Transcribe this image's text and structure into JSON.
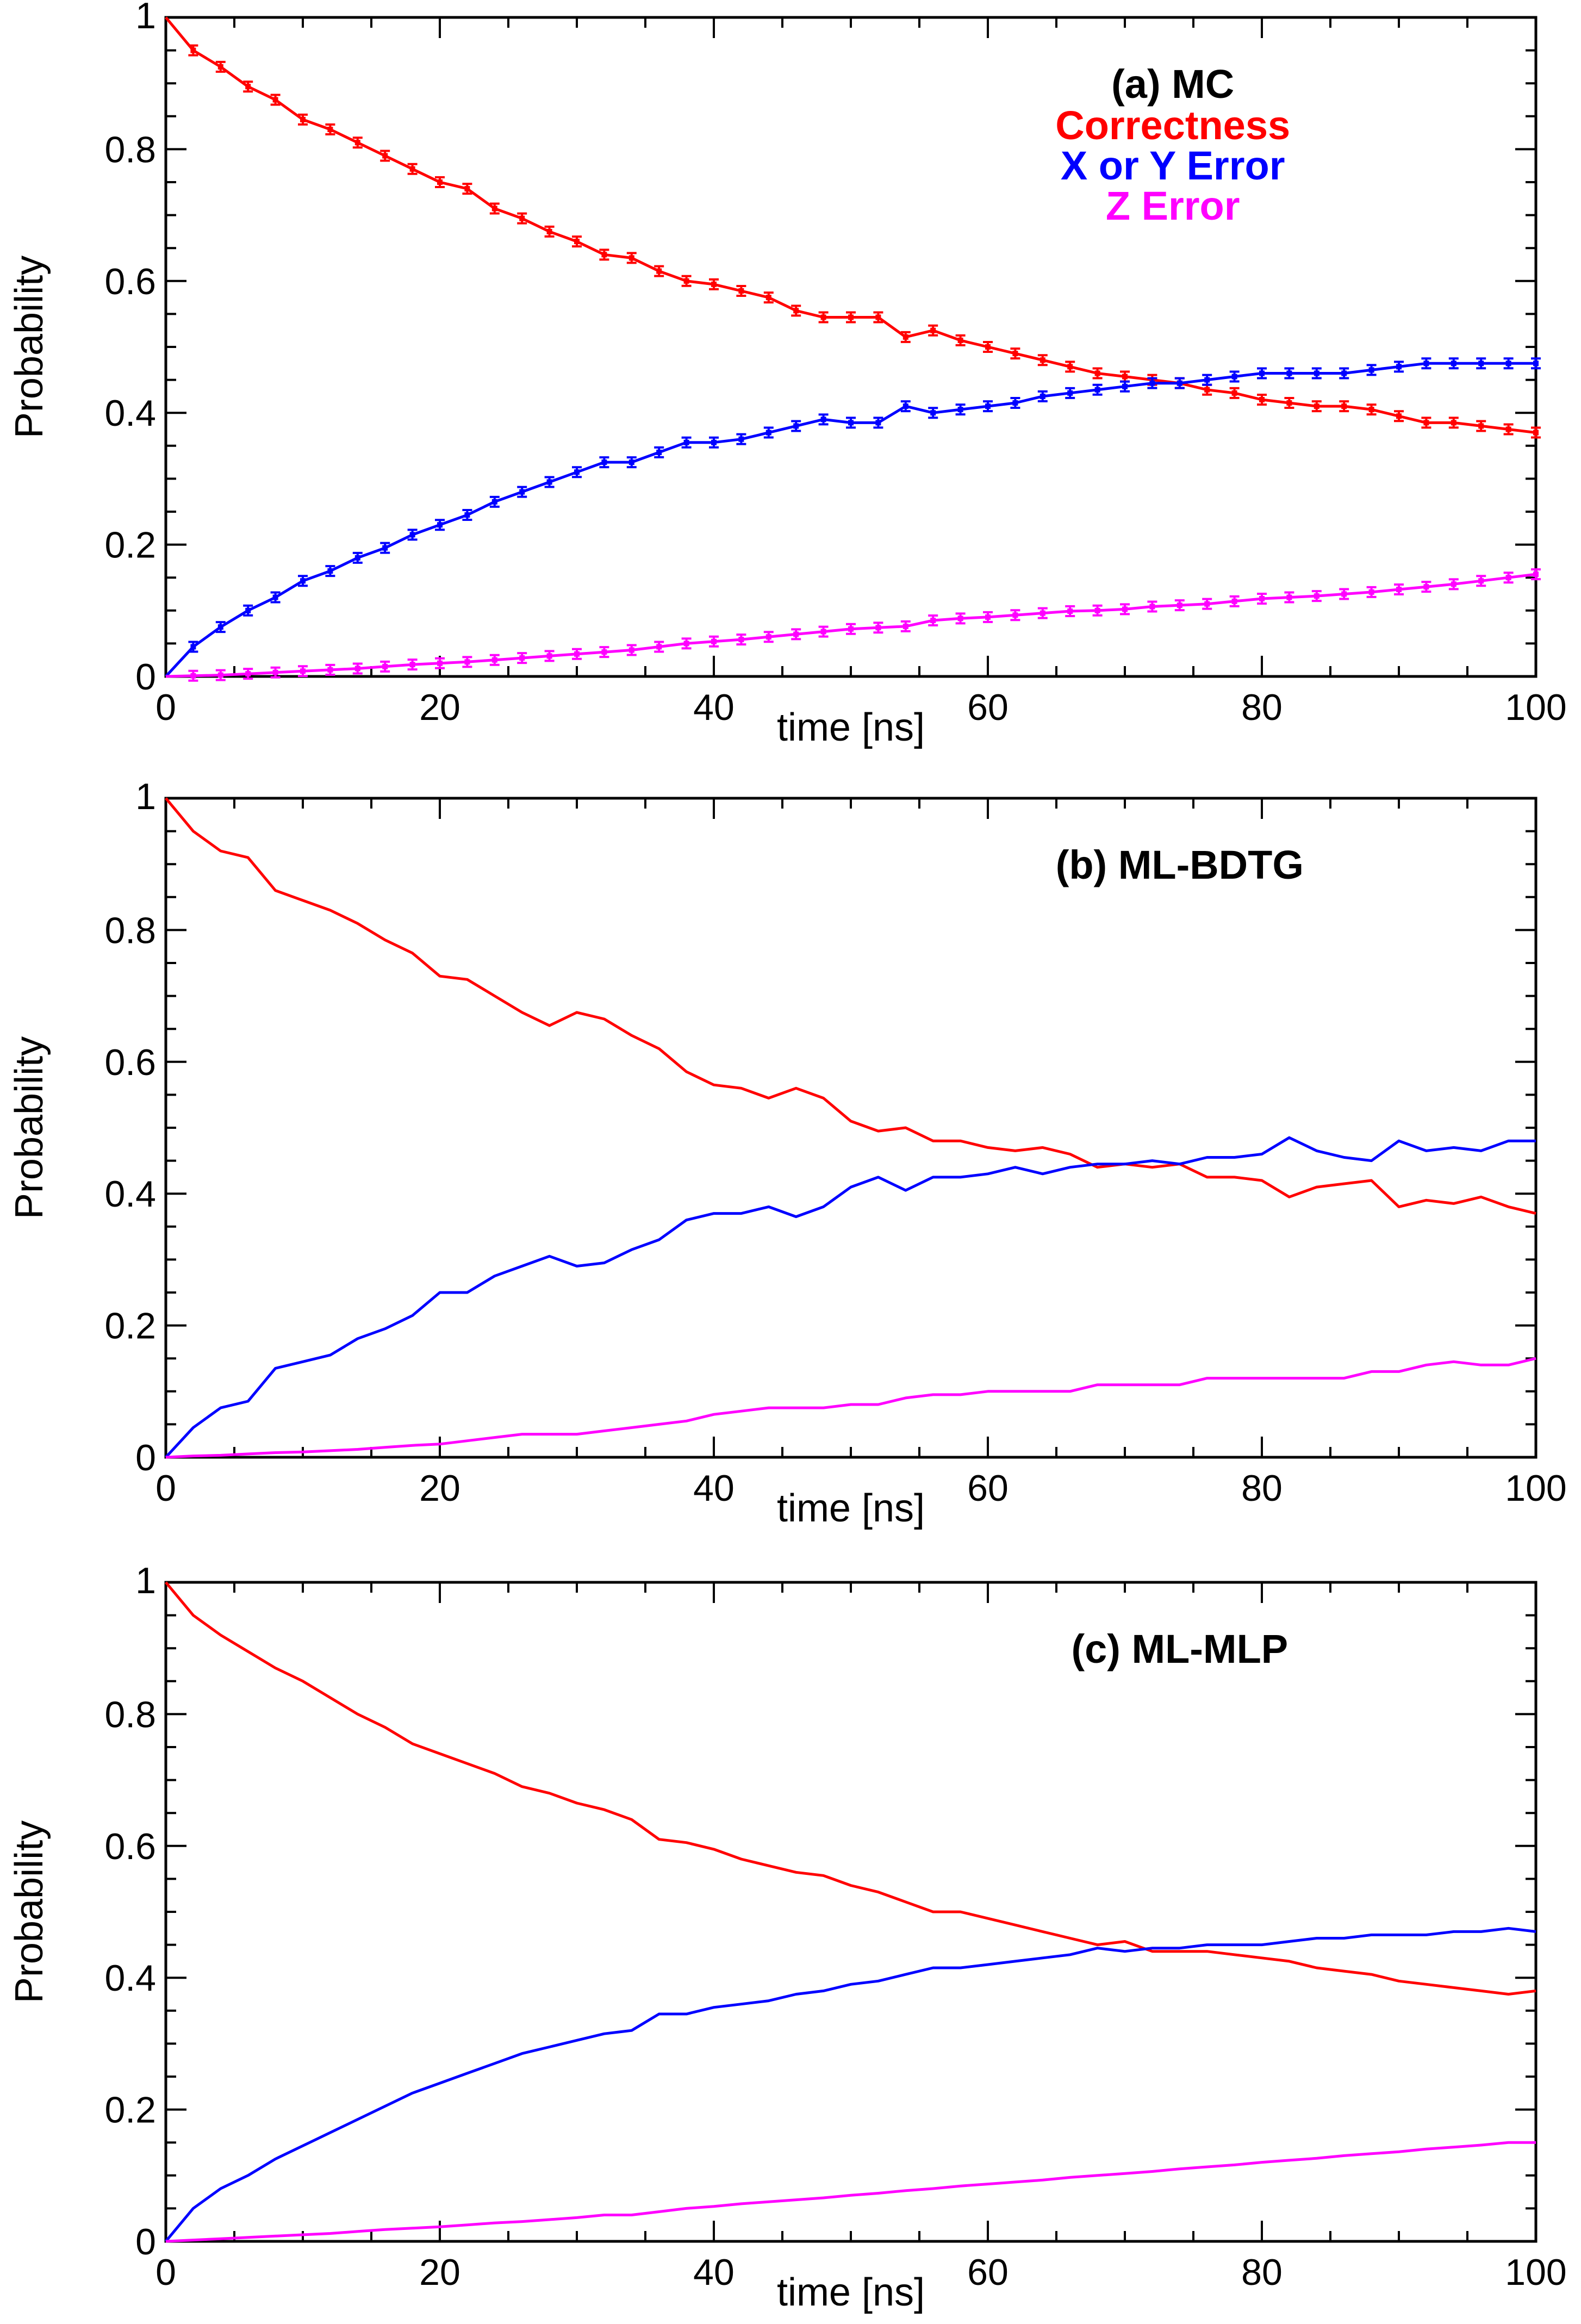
{
  "colors": {
    "correctness": "#ff0000",
    "xy_error": "#0000ff",
    "z_error": "#ff00ff",
    "axis": "#000000"
  },
  "legend": {
    "correctness": "Correctness",
    "xy_error": "X or Y Error",
    "z_error": "Z Error"
  },
  "chart_data": [
    {
      "type": "line",
      "title": "(a) MC",
      "xlabel": "time [ns]",
      "ylabel": "Probability",
      "xlim": [
        0,
        100
      ],
      "ylim": [
        0,
        1
      ],
      "xticks": [
        "0",
        "20",
        "40",
        "60",
        "80",
        "100"
      ],
      "yticks": [
        "0",
        "0.2",
        "0.4",
        "0.6",
        "0.8",
        "1"
      ],
      "error_bars": true,
      "x": [
        0,
        2,
        4,
        6,
        8,
        10,
        12,
        14,
        16,
        18,
        20,
        22,
        24,
        26,
        28,
        30,
        32,
        34,
        36,
        38,
        40,
        42,
        44,
        46,
        48,
        50,
        52,
        54,
        56,
        58,
        60,
        62,
        64,
        66,
        68,
        70,
        72,
        74,
        76,
        78,
        80,
        82,
        84,
        86,
        88,
        90,
        92,
        94,
        96,
        98,
        100
      ],
      "series": [
        {
          "name": "Correctness",
          "color_key": "correctness",
          "values": [
            1.0,
            0.95,
            0.925,
            0.895,
            0.875,
            0.845,
            0.83,
            0.81,
            0.79,
            0.77,
            0.75,
            0.74,
            0.71,
            0.695,
            0.675,
            0.66,
            0.64,
            0.635,
            0.615,
            0.6,
            0.595,
            0.585,
            0.575,
            0.555,
            0.545,
            0.545,
            0.545,
            0.515,
            0.525,
            0.51,
            0.5,
            0.49,
            0.48,
            0.47,
            0.46,
            0.455,
            0.45,
            0.445,
            0.435,
            0.43,
            0.42,
            0.415,
            0.41,
            0.41,
            0.405,
            0.395,
            0.385,
            0.385,
            0.38,
            0.375,
            0.37
          ]
        },
        {
          "name": "X or Y Error",
          "color_key": "xy_error",
          "values": [
            0.0,
            0.045,
            0.075,
            0.1,
            0.12,
            0.145,
            0.16,
            0.18,
            0.195,
            0.215,
            0.23,
            0.245,
            0.265,
            0.28,
            0.295,
            0.31,
            0.325,
            0.325,
            0.34,
            0.355,
            0.355,
            0.36,
            0.37,
            0.38,
            0.39,
            0.385,
            0.385,
            0.41,
            0.4,
            0.405,
            0.41,
            0.415,
            0.425,
            0.43,
            0.435,
            0.44,
            0.445,
            0.445,
            0.45,
            0.455,
            0.46,
            0.46,
            0.46,
            0.46,
            0.465,
            0.47,
            0.475,
            0.475,
            0.475,
            0.475,
            0.475
          ]
        },
        {
          "name": "Z Error",
          "color_key": "z_error",
          "values": [
            0.0,
            0.001,
            0.002,
            0.004,
            0.006,
            0.008,
            0.01,
            0.012,
            0.015,
            0.018,
            0.02,
            0.022,
            0.025,
            0.028,
            0.031,
            0.034,
            0.037,
            0.04,
            0.045,
            0.05,
            0.053,
            0.056,
            0.06,
            0.064,
            0.068,
            0.072,
            0.074,
            0.076,
            0.085,
            0.088,
            0.09,
            0.093,
            0.096,
            0.099,
            0.1,
            0.102,
            0.106,
            0.108,
            0.11,
            0.114,
            0.118,
            0.12,
            0.122,
            0.125,
            0.128,
            0.132,
            0.136,
            0.14,
            0.145,
            0.15,
            0.155
          ]
        }
      ]
    },
    {
      "type": "line",
      "title": "(b) ML-BDTG",
      "xlabel": "time [ns]",
      "ylabel": "Probability",
      "xlim": [
        0,
        100
      ],
      "ylim": [
        0,
        1
      ],
      "xticks": [
        "0",
        "20",
        "40",
        "60",
        "80",
        "100"
      ],
      "yticks": [
        "0",
        "0.2",
        "0.4",
        "0.6",
        "0.8",
        "1"
      ],
      "error_bars": false,
      "x": [
        0,
        2,
        4,
        6,
        8,
        10,
        12,
        14,
        16,
        18,
        20,
        22,
        24,
        26,
        28,
        30,
        32,
        34,
        36,
        38,
        40,
        42,
        44,
        46,
        48,
        50,
        52,
        54,
        56,
        58,
        60,
        62,
        64,
        66,
        68,
        70,
        72,
        74,
        76,
        78,
        80,
        82,
        84,
        86,
        88,
        90,
        92,
        94,
        96,
        98,
        100
      ],
      "series": [
        {
          "name": "Correctness",
          "color_key": "correctness",
          "values": [
            1.0,
            0.95,
            0.92,
            0.91,
            0.86,
            0.845,
            0.83,
            0.81,
            0.785,
            0.765,
            0.73,
            0.725,
            0.7,
            0.675,
            0.655,
            0.675,
            0.665,
            0.64,
            0.62,
            0.585,
            0.565,
            0.56,
            0.545,
            0.56,
            0.545,
            0.51,
            0.495,
            0.5,
            0.48,
            0.48,
            0.47,
            0.465,
            0.47,
            0.46,
            0.44,
            0.445,
            0.44,
            0.445,
            0.425,
            0.425,
            0.42,
            0.395,
            0.41,
            0.415,
            0.42,
            0.38,
            0.39,
            0.385,
            0.395,
            0.38,
            0.37
          ]
        },
        {
          "name": "X or Y Error",
          "color_key": "xy_error",
          "values": [
            0.0,
            0.045,
            0.075,
            0.085,
            0.135,
            0.145,
            0.155,
            0.18,
            0.195,
            0.215,
            0.25,
            0.25,
            0.275,
            0.29,
            0.305,
            0.29,
            0.295,
            0.315,
            0.33,
            0.36,
            0.37,
            0.37,
            0.38,
            0.365,
            0.38,
            0.41,
            0.425,
            0.405,
            0.425,
            0.425,
            0.43,
            0.44,
            0.43,
            0.44,
            0.445,
            0.445,
            0.45,
            0.445,
            0.455,
            0.455,
            0.46,
            0.485,
            0.465,
            0.455,
            0.45,
            0.48,
            0.465,
            0.47,
            0.465,
            0.48,
            0.48
          ]
        },
        {
          "name": "Z Error",
          "color_key": "z_error",
          "values": [
            0.0,
            0.002,
            0.003,
            0.005,
            0.007,
            0.008,
            0.01,
            0.012,
            0.015,
            0.018,
            0.02,
            0.025,
            0.03,
            0.035,
            0.035,
            0.035,
            0.04,
            0.045,
            0.05,
            0.055,
            0.065,
            0.07,
            0.075,
            0.075,
            0.075,
            0.08,
            0.08,
            0.09,
            0.095,
            0.095,
            0.1,
            0.1,
            0.1,
            0.1,
            0.11,
            0.11,
            0.11,
            0.11,
            0.12,
            0.12,
            0.12,
            0.12,
            0.12,
            0.12,
            0.13,
            0.13,
            0.14,
            0.145,
            0.14,
            0.14,
            0.15
          ]
        }
      ]
    },
    {
      "type": "line",
      "title": "(c) ML-MLP",
      "xlabel": "time [ns]",
      "ylabel": "Probability",
      "xlim": [
        0,
        100
      ],
      "ylim": [
        0,
        1
      ],
      "xticks": [
        "0",
        "20",
        "40",
        "60",
        "80",
        "100"
      ],
      "yticks": [
        "0",
        "0.2",
        "0.4",
        "0.6",
        "0.8",
        "1"
      ],
      "error_bars": false,
      "x": [
        0,
        2,
        4,
        6,
        8,
        10,
        12,
        14,
        16,
        18,
        20,
        22,
        24,
        26,
        28,
        30,
        32,
        34,
        36,
        38,
        40,
        42,
        44,
        46,
        48,
        50,
        52,
        54,
        56,
        58,
        60,
        62,
        64,
        66,
        68,
        70,
        72,
        74,
        76,
        78,
        80,
        82,
        84,
        86,
        88,
        90,
        92,
        94,
        96,
        98,
        100
      ],
      "series": [
        {
          "name": "Correctness",
          "color_key": "correctness",
          "values": [
            1.0,
            0.95,
            0.92,
            0.895,
            0.87,
            0.85,
            0.825,
            0.8,
            0.78,
            0.755,
            0.74,
            0.725,
            0.71,
            0.69,
            0.68,
            0.665,
            0.655,
            0.64,
            0.61,
            0.605,
            0.595,
            0.58,
            0.57,
            0.56,
            0.555,
            0.54,
            0.53,
            0.515,
            0.5,
            0.5,
            0.49,
            0.48,
            0.47,
            0.46,
            0.45,
            0.455,
            0.44,
            0.44,
            0.44,
            0.435,
            0.43,
            0.425,
            0.415,
            0.41,
            0.405,
            0.395,
            0.39,
            0.385,
            0.38,
            0.375,
            0.38
          ]
        },
        {
          "name": "X or Y Error",
          "color_key": "xy_error",
          "values": [
            0.0,
            0.05,
            0.08,
            0.1,
            0.125,
            0.145,
            0.165,
            0.185,
            0.205,
            0.225,
            0.24,
            0.255,
            0.27,
            0.285,
            0.295,
            0.305,
            0.315,
            0.32,
            0.345,
            0.345,
            0.355,
            0.36,
            0.365,
            0.375,
            0.38,
            0.39,
            0.395,
            0.405,
            0.415,
            0.415,
            0.42,
            0.425,
            0.43,
            0.435,
            0.445,
            0.44,
            0.445,
            0.445,
            0.45,
            0.45,
            0.45,
            0.455,
            0.46,
            0.46,
            0.465,
            0.465,
            0.465,
            0.47,
            0.47,
            0.475,
            0.47
          ]
        },
        {
          "name": "Z Error",
          "color_key": "z_error",
          "values": [
            0.0,
            0.002,
            0.004,
            0.006,
            0.008,
            0.01,
            0.012,
            0.015,
            0.018,
            0.02,
            0.022,
            0.025,
            0.028,
            0.03,
            0.033,
            0.036,
            0.04,
            0.04,
            0.045,
            0.05,
            0.053,
            0.057,
            0.06,
            0.063,
            0.066,
            0.07,
            0.073,
            0.077,
            0.08,
            0.084,
            0.087,
            0.09,
            0.093,
            0.097,
            0.1,
            0.103,
            0.106,
            0.11,
            0.113,
            0.116,
            0.12,
            0.123,
            0.126,
            0.13,
            0.133,
            0.136,
            0.14,
            0.143,
            0.146,
            0.15,
            0.15
          ]
        }
      ]
    }
  ]
}
